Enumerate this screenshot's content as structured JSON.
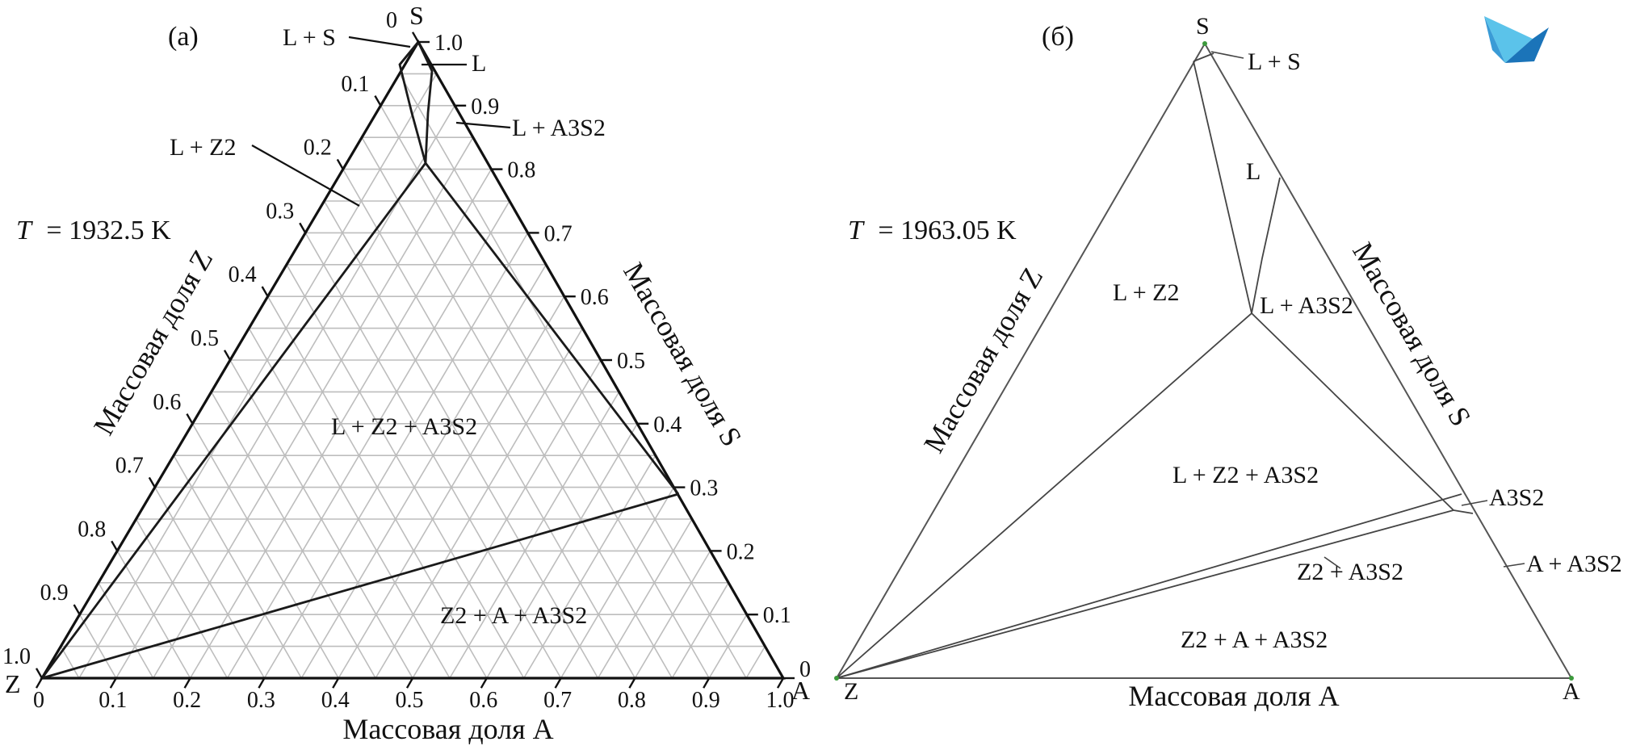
{
  "panel_a": {
    "label": "(a)",
    "temperature": {
      "symbol": "T",
      "value": "= 1932.5 K"
    },
    "vertex_z": "Z",
    "vertex_a": "A",
    "vertex_s": "S",
    "axis_bottom_label": "Массовая доля A",
    "axis_left_label": "Массовая доля Z",
    "axis_right_label": "Массовая доля S",
    "ticks": [
      "0",
      "0.1",
      "0.2",
      "0.3",
      "0.4",
      "0.5",
      "0.6",
      "0.7",
      "0.8",
      "0.9",
      "1.0"
    ],
    "regions": {
      "l_plus_s": "L + S",
      "l": "L",
      "l_plus_a3s2": "L + A3S2",
      "l_plus_z2": "L + Z2",
      "l_plus_z2_plus_a3s2": "L + Z2 + A3S2",
      "z2_plus_a_plus_a3s2": "Z2 + A + A3S2"
    }
  },
  "panel_b": {
    "label": "(б)",
    "temperature": {
      "symbol": "T",
      "value": "= 1963.05 K"
    },
    "vertex_z": "Z",
    "vertex_a": "A",
    "vertex_s": "S",
    "axis_bottom_label": "Массовая доля A",
    "axis_left_label": "Массовая доля Z",
    "axis_right_label": "Массовая доля S",
    "regions": {
      "l_plus_s": "L + S",
      "l": "L",
      "l_plus_z2": "L + Z2",
      "l_plus_a3s2": "L + A3S2",
      "l_plus_z2_plus_a3s2": "L + Z2 + A3S2",
      "a3s2": "A3S2",
      "a_plus_a3s2": "A + A3S2",
      "z2_plus_a3s2": "Z2 + A3S2",
      "z2_plus_a_plus_a3s2": "Z2 + A + A3S2"
    }
  },
  "colors": {
    "logo_light": "#5bc3ea",
    "logo_dark": "#1b74b9",
    "vertex_dot": "#3c9a3c"
  }
}
